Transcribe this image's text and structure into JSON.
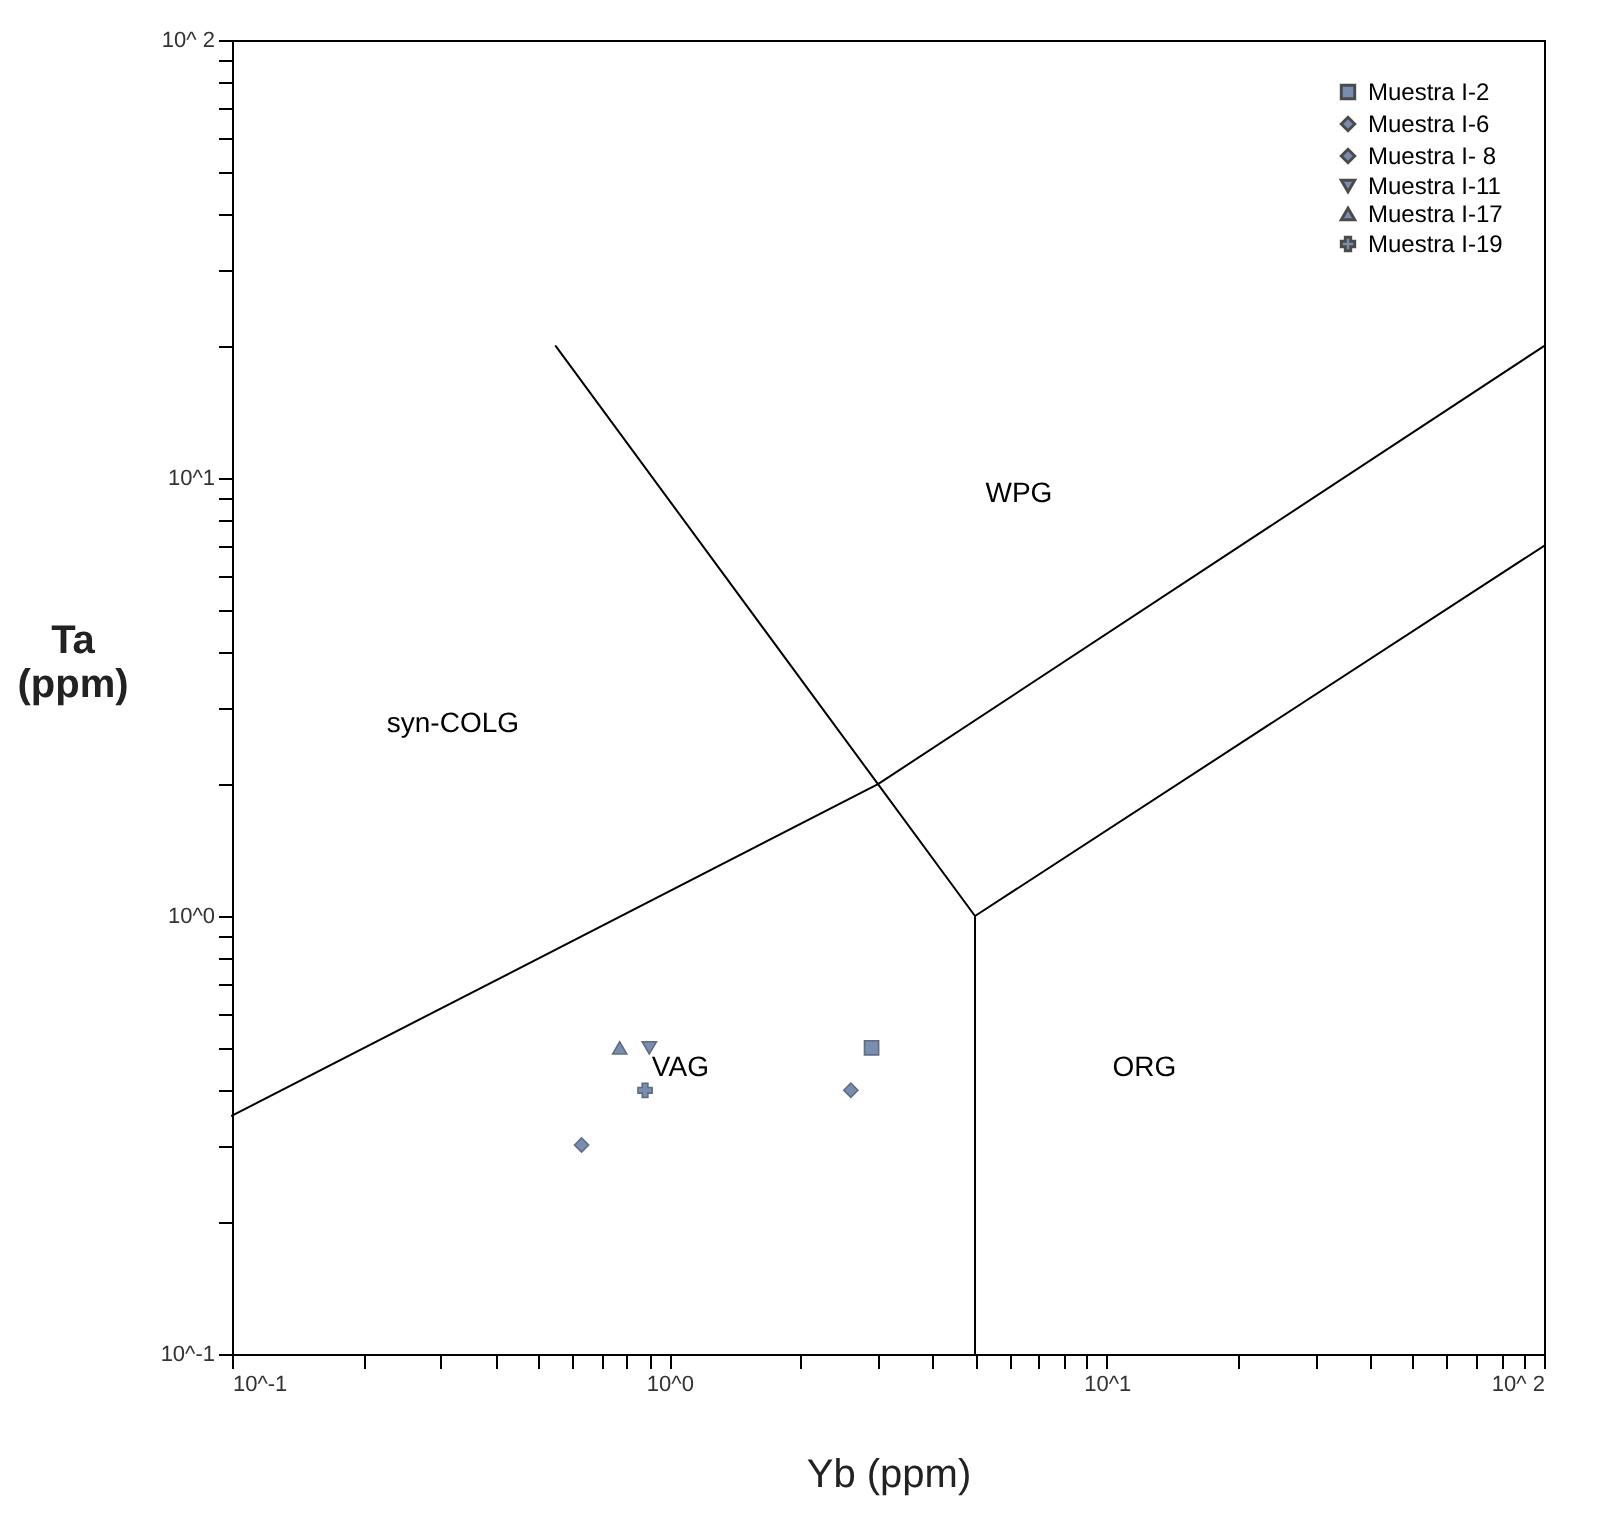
{
  "chart_data": {
    "type": "scatter",
    "xlabel": "Yb (ppm)",
    "ylabel": "Ta (ppm)",
    "log": "xy",
    "grid": false,
    "legend": "top right",
    "xlim": [
      0.1,
      100
    ],
    "ylim": [
      0.1,
      100
    ],
    "xticks": [
      {
        "value": 0.1,
        "label": "10^-1"
      },
      {
        "value": 0.2,
        "label": null
      },
      {
        "value": 0.3,
        "label": null
      },
      {
        "value": 0.4,
        "label": null
      },
      {
        "value": 0.5,
        "label": null
      },
      {
        "value": 0.6,
        "label": null
      },
      {
        "value": 0.7,
        "label": null
      },
      {
        "value": 0.8,
        "label": null
      },
      {
        "value": 0.9,
        "label": null
      },
      {
        "value": 1,
        "label": "10^0"
      },
      {
        "value": 2,
        "label": null
      },
      {
        "value": 3,
        "label": null
      },
      {
        "value": 4,
        "label": null
      },
      {
        "value": 5,
        "label": null
      },
      {
        "value": 6,
        "label": null
      },
      {
        "value": 7,
        "label": null
      },
      {
        "value": 8,
        "label": null
      },
      {
        "value": 9,
        "label": null
      },
      {
        "value": 10,
        "label": "10^1"
      },
      {
        "value": 20,
        "label": null
      },
      {
        "value": 30,
        "label": null
      },
      {
        "value": 40,
        "label": null
      },
      {
        "value": 50,
        "label": null
      },
      {
        "value": 60,
        "label": null
      },
      {
        "value": 70,
        "label": null
      },
      {
        "value": 80,
        "label": null
      },
      {
        "value": 90,
        "label": null
      },
      {
        "value": 100,
        "label": "10^ 2"
      }
    ],
    "yticks": [
      {
        "value": 0.1,
        "label": "10^-1"
      },
      {
        "value": 0.2,
        "label": null
      },
      {
        "value": 0.3,
        "label": null
      },
      {
        "value": 0.4,
        "label": null
      },
      {
        "value": 0.5,
        "label": null
      },
      {
        "value": 0.6,
        "label": null
      },
      {
        "value": 0.7,
        "label": null
      },
      {
        "value": 0.8,
        "label": null
      },
      {
        "value": 0.9,
        "label": null
      },
      {
        "value": 1,
        "label": "10^0"
      },
      {
        "value": 2,
        "label": null
      },
      {
        "value": 3,
        "label": null
      },
      {
        "value": 4,
        "label": null
      },
      {
        "value": 5,
        "label": null
      },
      {
        "value": 6,
        "label": null
      },
      {
        "value": 7,
        "label": null
      },
      {
        "value": 8,
        "label": null
      },
      {
        "value": 9,
        "label": null
      },
      {
        "value": 10,
        "label": "10^1"
      },
      {
        "value": 20,
        "label": null
      },
      {
        "value": 30,
        "label": null
      },
      {
        "value": 40,
        "label": null
      },
      {
        "value": 50,
        "label": null
      },
      {
        "value": 60,
        "label": null
      },
      {
        "value": 70,
        "label": null
      },
      {
        "value": 80,
        "label": null
      },
      {
        "value": 90,
        "label": null
      },
      {
        "value": 100,
        "label": "10^ 2"
      }
    ],
    "series": [
      {
        "name": "Muestra I-2",
        "color": "#3f5f8f",
        "marker": "square",
        "x": [
          2.9
        ],
        "values": [
          0.5
        ]
      },
      {
        "name": "Muestra I-6",
        "color": "#3f5f8f",
        "marker": "diamond",
        "x": [
          2.6
        ],
        "values": [
          0.4
        ]
      },
      {
        "name": "Muestra I- 8",
        "color": "#3f5f8f",
        "marker": "diamond",
        "x": [
          0.63
        ],
        "values": [
          0.3
        ]
      },
      {
        "name": "Muestra I-11",
        "color": "#3f5f8f",
        "marker": "triangle-down",
        "x": [
          0.9
        ],
        "values": [
          0.5
        ]
      },
      {
        "name": "Muestra I-17",
        "color": "#3f5f8f",
        "marker": "triangle",
        "x": [
          0.77
        ],
        "values": [
          0.5
        ]
      },
      {
        "name": "Muestra I-19",
        "color": "#3f5f8f",
        "marker": "cross",
        "x": [
          0.88
        ],
        "values": [
          0.4
        ]
      },
      {
        "type": "line",
        "color": "#000000",
        "x": [
          0.55,
          3,
          5
        ],
        "values": [
          20,
          2,
          1
        ]
      },
      {
        "type": "line",
        "color": "#000000",
        "x": [
          5,
          5
        ],
        "values": [
          1,
          0.1
        ]
      },
      {
        "type": "line",
        "color": "#000000",
        "x": [
          0.1,
          3,
          100
        ],
        "values": [
          0.35,
          2,
          20
        ]
      },
      {
        "type": "line",
        "color": "#000000",
        "x": [
          5,
          100
        ],
        "values": [
          1,
          7
        ]
      }
    ],
    "annotations": [
      "syn-COLG",
      "WPG",
      "VAG",
      "ORG"
    ]
  }
}
